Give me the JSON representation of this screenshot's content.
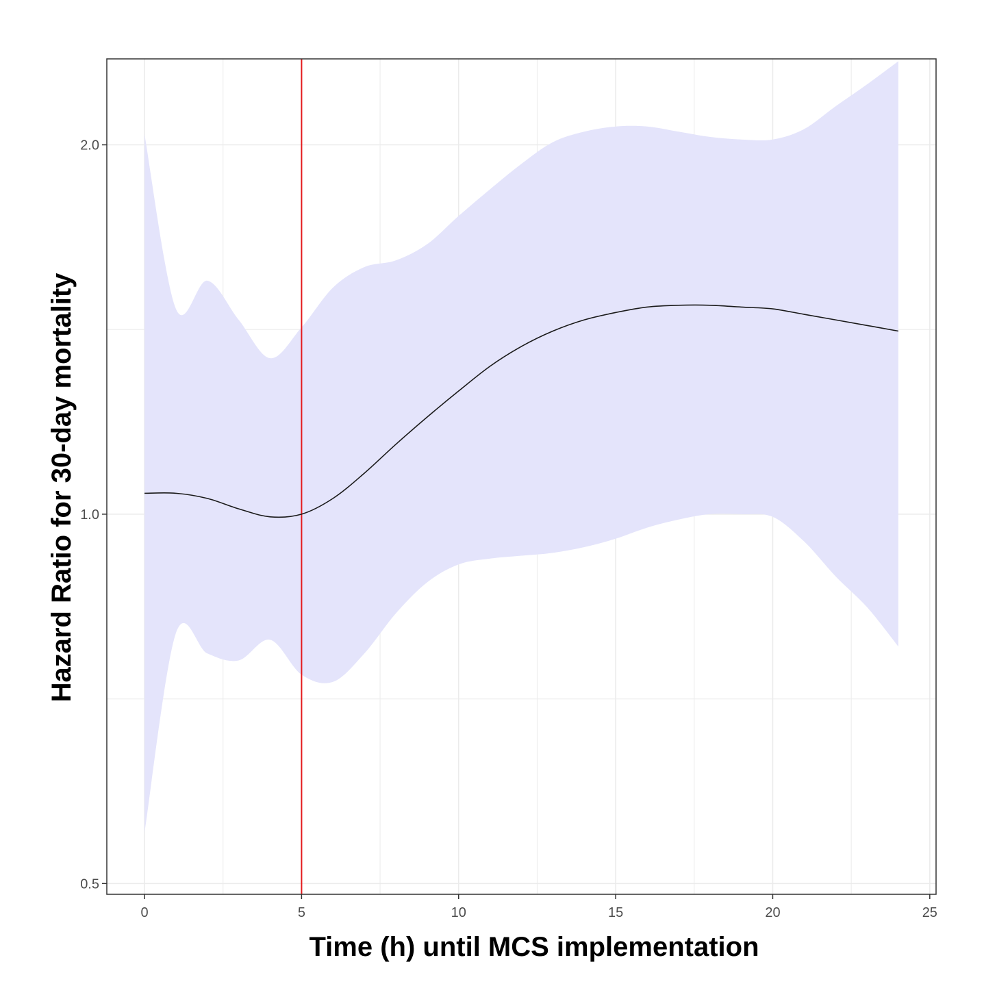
{
  "chart_data": {
    "type": "line",
    "title": "",
    "xlabel": "Time (h) until MCS implementation",
    "ylabel": "Hazard Ratio for 30-day mortality",
    "xlim": [
      -1.2,
      25.2
    ],
    "ylim": [
      0.49,
      2.35
    ],
    "y_scale": "log",
    "x_ticks": [
      0,
      5,
      10,
      15,
      20,
      25
    ],
    "x_tick_labels": [
      "0",
      "5",
      "10",
      "15",
      "20",
      "25"
    ],
    "y_ticks": [
      0.5,
      1.0,
      2.0
    ],
    "y_tick_labels": [
      "0.5",
      "1.0",
      "2.0"
    ],
    "y_minor_gridlines": [
      0.707,
      1.414
    ],
    "grid": true,
    "legend": "none",
    "colors": {
      "ribbon": "#e4e4fb",
      "line": "#1a1a1a",
      "reference_line": "#e41a1c",
      "grid": "#ebebeb",
      "panel_border": "#333333"
    },
    "reference_line": {
      "x": 5
    },
    "series": [
      {
        "x": [
          0,
          1,
          2,
          3,
          4,
          5,
          6,
          7,
          8,
          9,
          10,
          11,
          12,
          13,
          14,
          15,
          16,
          17,
          18,
          19,
          20,
          21,
          22,
          23,
          24
        ],
        "y": [
          1.04,
          1.04,
          1.03,
          1.01,
          0.995,
          1.0,
          1.03,
          1.08,
          1.14,
          1.2,
          1.26,
          1.32,
          1.37,
          1.41,
          1.44,
          1.46,
          1.475,
          1.48,
          1.48,
          1.475,
          1.47,
          1.455,
          1.44,
          1.425,
          1.41
        ],
        "lower": [
          0.55,
          0.8,
          0.77,
          0.76,
          0.79,
          0.74,
          0.73,
          0.77,
          0.83,
          0.88,
          0.91,
          0.92,
          0.925,
          0.93,
          0.94,
          0.955,
          0.975,
          0.99,
          1.0,
          1.0,
          0.995,
          0.95,
          0.89,
          0.84,
          0.78
        ],
        "upper": [
          2.04,
          1.47,
          1.55,
          1.44,
          1.34,
          1.42,
          1.53,
          1.59,
          1.61,
          1.66,
          1.75,
          1.84,
          1.93,
          2.01,
          2.05,
          2.07,
          2.07,
          2.05,
          2.03,
          2.02,
          2.02,
          2.06,
          2.15,
          2.24,
          2.34
        ]
      }
    ]
  }
}
